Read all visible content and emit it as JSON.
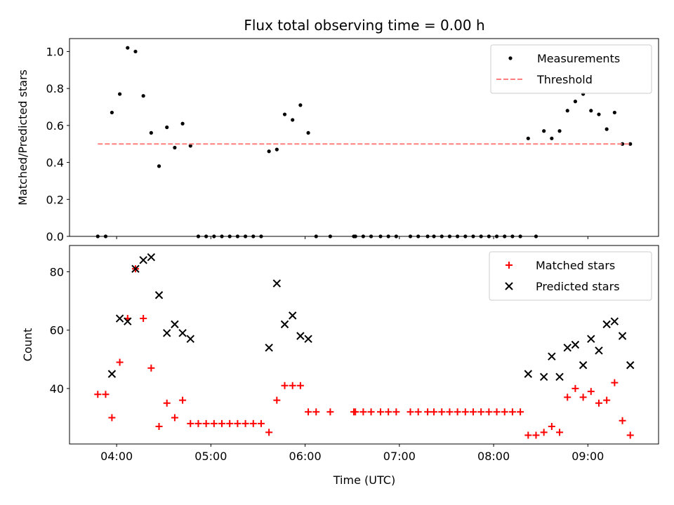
{
  "figure": {
    "title": "Flux total observing time = 0.00 h",
    "xlabel": "Time (UTC)"
  },
  "chart_data": [
    {
      "type": "scatter",
      "ylabel": "Matched/Predicted stars",
      "ylim": [
        0,
        1.07
      ],
      "xlim": [
        "03:30",
        "09:45"
      ],
      "yticks": [
        0.0,
        0.2,
        0.4,
        0.6,
        0.8,
        1.0
      ],
      "ytick_labels": [
        "0.0",
        "0.2",
        "0.4",
        "0.6",
        "0.8",
        "1.0"
      ],
      "xticks": [
        "04:00",
        "05:00",
        "06:00",
        "07:00",
        "08:00",
        "09:00"
      ],
      "show_xtick_labels": false,
      "legend": "top-right",
      "series": [
        {
          "name": "Measurements",
          "marker": "dot",
          "color": "#000000",
          "points": [
            [
              "03:48",
              0.0
            ],
            [
              "03:53",
              0.0
            ],
            [
              "03:57",
              0.67
            ],
            [
              "04:02",
              0.77
            ],
            [
              "04:07",
              1.02
            ],
            [
              "04:12",
              1.0
            ],
            [
              "04:17",
              0.76
            ],
            [
              "04:22",
              0.56
            ],
            [
              "04:27",
              0.38
            ],
            [
              "04:32",
              0.59
            ],
            [
              "04:37",
              0.48
            ],
            [
              "04:42",
              0.61
            ],
            [
              "04:47",
              0.49
            ],
            [
              "04:52",
              0.0
            ],
            [
              "04:57",
              0.0
            ],
            [
              "05:02",
              0.0
            ],
            [
              "05:07",
              0.0
            ],
            [
              "05:12",
              0.0
            ],
            [
              "05:17",
              0.0
            ],
            [
              "05:22",
              0.0
            ],
            [
              "05:27",
              0.0
            ],
            [
              "05:32",
              0.0
            ],
            [
              "05:37",
              0.46
            ],
            [
              "05:42",
              0.47
            ],
            [
              "05:47",
              0.66
            ],
            [
              "05:52",
              0.63
            ],
            [
              "05:57",
              0.71
            ],
            [
              "06:02",
              0.56
            ],
            [
              "06:07",
              0.0
            ],
            [
              "06:16",
              0.0
            ],
            [
              "06:31",
              0.0
            ],
            [
              "06:32",
              0.0
            ],
            [
              "06:37",
              0.0
            ],
            [
              "06:42",
              0.0
            ],
            [
              "06:48",
              0.0
            ],
            [
              "06:53",
              0.0
            ],
            [
              "06:58",
              0.0
            ],
            [
              "07:07",
              0.0
            ],
            [
              "07:12",
              0.0
            ],
            [
              "07:18",
              0.0
            ],
            [
              "07:22",
              0.0
            ],
            [
              "07:27",
              0.0
            ],
            [
              "07:32",
              0.0
            ],
            [
              "07:37",
              0.0
            ],
            [
              "07:42",
              0.0
            ],
            [
              "07:47",
              0.0
            ],
            [
              "07:52",
              0.0
            ],
            [
              "07:57",
              0.0
            ],
            [
              "08:02",
              0.0
            ],
            [
              "08:07",
              0.0
            ],
            [
              "08:12",
              0.0
            ],
            [
              "08:17",
              0.0
            ],
            [
              "08:22",
              0.53
            ],
            [
              "08:27",
              0.0
            ],
            [
              "08:32",
              0.57
            ],
            [
              "08:37",
              0.53
            ],
            [
              "08:42",
              0.57
            ],
            [
              "08:47",
              0.68
            ],
            [
              "08:52",
              0.73
            ],
            [
              "08:57",
              0.77
            ],
            [
              "09:02",
              0.68
            ],
            [
              "09:07",
              0.66
            ],
            [
              "09:12",
              0.58
            ],
            [
              "09:17",
              0.67
            ],
            [
              "09:22",
              0.5
            ],
            [
              "09:27",
              0.5
            ]
          ]
        },
        {
          "name": "Threshold",
          "marker": "dashed-line",
          "color": "#ff7f7f",
          "points": [
            [
              "03:48",
              0.5
            ],
            [
              "09:27",
              0.5
            ]
          ]
        }
      ]
    },
    {
      "type": "scatter",
      "ylabel": "Count",
      "ylim": [
        21,
        89
      ],
      "xlim": [
        "03:30",
        "09:45"
      ],
      "yticks": [
        40,
        60,
        80
      ],
      "ytick_labels": [
        "40",
        "60",
        "80"
      ],
      "xticks": [
        "04:00",
        "05:00",
        "06:00",
        "07:00",
        "08:00",
        "09:00"
      ],
      "xtick_labels": [
        "04:00",
        "05:00",
        "06:00",
        "07:00",
        "08:00",
        "09:00"
      ],
      "legend": "top-right",
      "series": [
        {
          "name": "Matched stars",
          "marker": "plus",
          "color": "#ff0000",
          "points": [
            [
              "03:48",
              38
            ],
            [
              "03:53",
              38
            ],
            [
              "03:57",
              30
            ],
            [
              "04:02",
              49
            ],
            [
              "04:07",
              64
            ],
            [
              "04:12",
              81
            ],
            [
              "04:17",
              64
            ],
            [
              "04:22",
              47
            ],
            [
              "04:27",
              27
            ],
            [
              "04:32",
              35
            ],
            [
              "04:37",
              30
            ],
            [
              "04:42",
              36
            ],
            [
              "04:47",
              28
            ],
            [
              "04:52",
              28
            ],
            [
              "04:57",
              28
            ],
            [
              "05:02",
              28
            ],
            [
              "05:07",
              28
            ],
            [
              "05:12",
              28
            ],
            [
              "05:17",
              28
            ],
            [
              "05:22",
              28
            ],
            [
              "05:27",
              28
            ],
            [
              "05:32",
              28
            ],
            [
              "05:37",
              25
            ],
            [
              "05:42",
              36
            ],
            [
              "05:47",
              41
            ],
            [
              "05:52",
              41
            ],
            [
              "05:57",
              41
            ],
            [
              "06:02",
              32
            ],
            [
              "06:07",
              32
            ],
            [
              "06:16",
              32
            ],
            [
              "06:31",
              32
            ],
            [
              "06:32",
              32
            ],
            [
              "06:37",
              32
            ],
            [
              "06:42",
              32
            ],
            [
              "06:48",
              32
            ],
            [
              "06:53",
              32
            ],
            [
              "06:58",
              32
            ],
            [
              "07:07",
              32
            ],
            [
              "07:12",
              32
            ],
            [
              "07:18",
              32
            ],
            [
              "07:22",
              32
            ],
            [
              "07:27",
              32
            ],
            [
              "07:32",
              32
            ],
            [
              "07:37",
              32
            ],
            [
              "07:42",
              32
            ],
            [
              "07:47",
              32
            ],
            [
              "07:52",
              32
            ],
            [
              "07:57",
              32
            ],
            [
              "08:02",
              32
            ],
            [
              "08:07",
              32
            ],
            [
              "08:12",
              32
            ],
            [
              "08:17",
              32
            ],
            [
              "08:22",
              24
            ],
            [
              "08:27",
              24
            ],
            [
              "08:32",
              25
            ],
            [
              "08:37",
              27
            ],
            [
              "08:42",
              25
            ],
            [
              "08:47",
              37
            ],
            [
              "08:52",
              40
            ],
            [
              "08:57",
              37
            ],
            [
              "09:02",
              39
            ],
            [
              "09:07",
              35
            ],
            [
              "09:12",
              36
            ],
            [
              "09:17",
              42
            ],
            [
              "09:22",
              29
            ],
            [
              "09:27",
              24
            ]
          ]
        },
        {
          "name": "Predicted stars",
          "marker": "x",
          "color": "#000000",
          "points": [
            [
              "03:57",
              45
            ],
            [
              "04:02",
              64
            ],
            [
              "04:07",
              63
            ],
            [
              "04:12",
              81
            ],
            [
              "04:17",
              84
            ],
            [
              "04:22",
              85
            ],
            [
              "04:27",
              72
            ],
            [
              "04:32",
              59
            ],
            [
              "04:37",
              62
            ],
            [
              "04:42",
              59
            ],
            [
              "04:47",
              57
            ],
            [
              "05:37",
              54
            ],
            [
              "05:42",
              76
            ],
            [
              "05:47",
              62
            ],
            [
              "05:52",
              65
            ],
            [
              "05:57",
              58
            ],
            [
              "06:02",
              57
            ],
            [
              "08:22",
              45
            ],
            [
              "08:32",
              44
            ],
            [
              "08:37",
              51
            ],
            [
              "08:42",
              44
            ],
            [
              "08:47",
              54
            ],
            [
              "08:52",
              55
            ],
            [
              "08:57",
              48
            ],
            [
              "09:02",
              57
            ],
            [
              "09:07",
              53
            ],
            [
              "09:12",
              62
            ],
            [
              "09:17",
              63
            ],
            [
              "09:22",
              58
            ],
            [
              "09:27",
              48
            ]
          ]
        }
      ]
    }
  ]
}
